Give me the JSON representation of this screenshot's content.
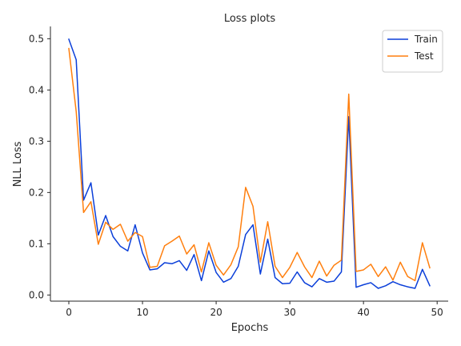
{
  "chart_data": {
    "type": "line",
    "title": "Loss plots",
    "xlabel": "Epochs",
    "ylabel": "NLL Loss",
    "xlim": [
      -2.5,
      51.5
    ],
    "ylim": [
      -0.012,
      0.524
    ],
    "xticks": [
      0,
      10,
      20,
      30,
      40,
      50
    ],
    "yticks": [
      0.0,
      0.1,
      0.2,
      0.3,
      0.4,
      0.5
    ],
    "ytick_labels": [
      "0.0",
      "0.1",
      "0.2",
      "0.3",
      "0.4",
      "0.5"
    ],
    "grid": false,
    "legend_position": "top-right",
    "x": [
      0,
      1,
      2,
      3,
      4,
      5,
      6,
      7,
      8,
      9,
      10,
      11,
      12,
      13,
      14,
      15,
      16,
      17,
      18,
      19,
      20,
      21,
      22,
      23,
      24,
      25,
      26,
      27,
      28,
      29,
      30,
      31,
      32,
      33,
      34,
      35,
      36,
      37,
      38,
      39,
      40,
      41,
      42,
      43,
      44,
      45,
      46,
      47,
      48,
      49
    ],
    "series": [
      {
        "name": "Train",
        "color": "#0b3fd9",
        "values": [
          0.499,
          0.459,
          0.185,
          0.219,
          0.117,
          0.155,
          0.114,
          0.095,
          0.086,
          0.137,
          0.082,
          0.049,
          0.051,
          0.063,
          0.061,
          0.067,
          0.048,
          0.079,
          0.028,
          0.086,
          0.044,
          0.025,
          0.032,
          0.056,
          0.118,
          0.137,
          0.041,
          0.109,
          0.034,
          0.022,
          0.023,
          0.045,
          0.024,
          0.016,
          0.032,
          0.025,
          0.027,
          0.045,
          0.348,
          0.015,
          0.02,
          0.024,
          0.013,
          0.018,
          0.026,
          0.02,
          0.016,
          0.013,
          0.05,
          0.018
        ]
      },
      {
        "name": "Test",
        "color": "#ff7f0e",
        "values": [
          0.481,
          0.358,
          0.161,
          0.182,
          0.099,
          0.142,
          0.128,
          0.138,
          0.105,
          0.122,
          0.114,
          0.054,
          0.056,
          0.096,
          0.105,
          0.115,
          0.08,
          0.098,
          0.045,
          0.102,
          0.058,
          0.039,
          0.059,
          0.094,
          0.21,
          0.173,
          0.064,
          0.143,
          0.056,
          0.034,
          0.054,
          0.083,
          0.055,
          0.034,
          0.066,
          0.037,
          0.058,
          0.068,
          0.392,
          0.046,
          0.049,
          0.06,
          0.036,
          0.055,
          0.029,
          0.064,
          0.036,
          0.028,
          0.102,
          0.053
        ]
      }
    ]
  }
}
